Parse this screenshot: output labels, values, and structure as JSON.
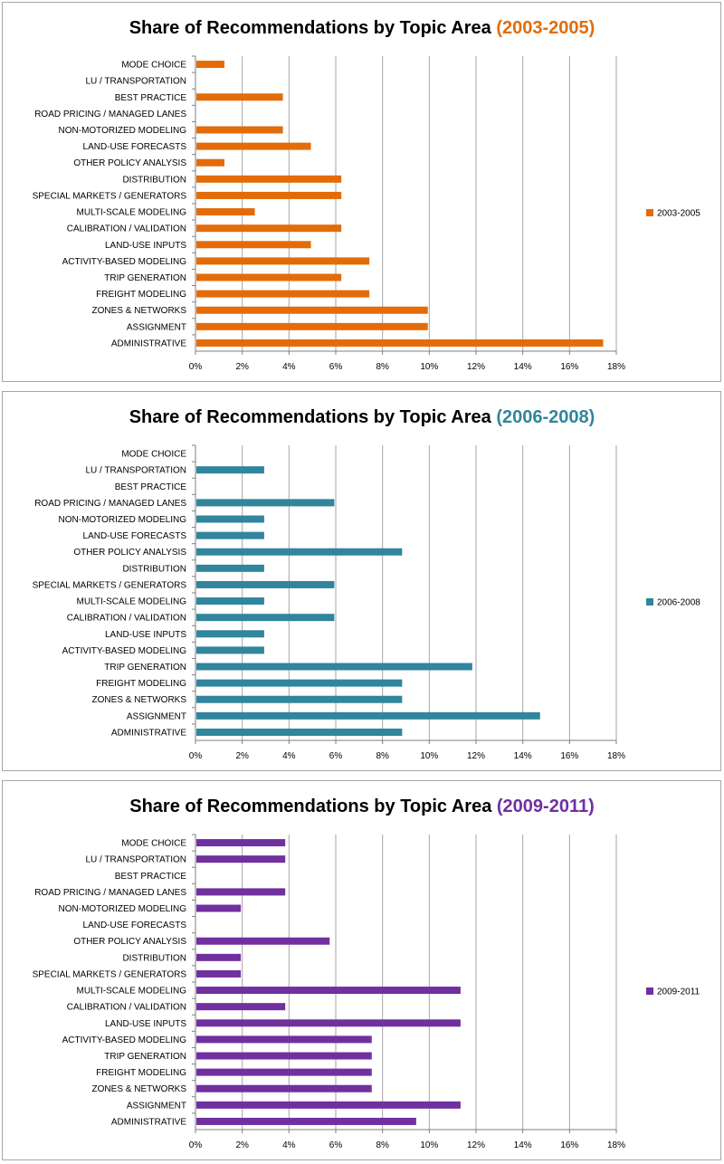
{
  "chart_data": [
    {
      "type": "bar",
      "orientation": "horizontal",
      "title": "Share of Recommendations by Topic Area",
      "title_period": "(2003-2005)",
      "period_color": "#E36C09",
      "bar_color": "#E36C09",
      "legend": "2003-2005",
      "xlim": [
        0,
        18
      ],
      "xticks": [
        "0%",
        "2%",
        "4%",
        "6%",
        "8%",
        "10%",
        "12%",
        "14%",
        "16%",
        "18%"
      ],
      "categories": [
        "MODE CHOICE",
        "LU / TRANSPORTATION",
        "BEST PRACTICE",
        "ROAD PRICING  / MANAGED  LANES",
        "NON-MOTORIZED  MODELING",
        "LAND-USE FORECASTS",
        "OTHER POLICY ANALYSIS",
        "DISTRIBUTION",
        "SPECIAL MARKETS  / GENERATORS",
        "MULTI-SCALE MODELING",
        "CALIBRATION / VALIDATION",
        "LAND-USE INPUTS",
        "ACTIVITY-BASED  MODELING",
        "TRIP GENERATION",
        "FREIGHT MODELING",
        "ZONES & NETWORKS",
        "ASSIGNMENT",
        "ADMINISTRATIVE"
      ],
      "values": [
        1.2,
        0,
        3.7,
        0,
        3.7,
        4.9,
        1.2,
        6.2,
        6.2,
        2.5,
        6.2,
        4.9,
        7.4,
        6.2,
        7.4,
        9.9,
        9.9,
        17.4
      ]
    },
    {
      "type": "bar",
      "orientation": "horizontal",
      "title": "Share of Recommendations by Topic Area",
      "title_period": "(2006-2008)",
      "period_color": "#31859C",
      "bar_color": "#31859C",
      "legend": "2006-2008",
      "xlim": [
        0,
        18
      ],
      "xticks": [
        "0%",
        "2%",
        "4%",
        "6%",
        "8%",
        "10%",
        "12%",
        "14%",
        "16%",
        "18%"
      ],
      "categories": [
        "MODE CHOICE",
        "LU / TRANSPORTATION",
        "BEST PRACTICE",
        "ROAD PRICING  / MANAGED  LANES",
        "NON-MOTORIZED  MODELING",
        "LAND-USE FORECASTS",
        "OTHER POLICY ANALYSIS",
        "DISTRIBUTION",
        "SPECIAL MARKETS  / GENERATORS",
        "MULTI-SCALE MODELING",
        "CALIBRATION / VALIDATION",
        "LAND-USE INPUTS",
        "ACTIVITY-BASED  MODELING",
        "TRIP GENERATION",
        "FREIGHT MODELING",
        "ZONES & NETWORKS",
        "ASSIGNMENT",
        "ADMINISTRATIVE"
      ],
      "values": [
        0,
        2.9,
        0,
        5.9,
        2.9,
        2.9,
        8.8,
        2.9,
        5.9,
        2.9,
        5.9,
        2.9,
        2.9,
        11.8,
        8.8,
        8.8,
        14.7,
        8.8
      ]
    },
    {
      "type": "bar",
      "orientation": "horizontal",
      "title": "Share of Recommendations by Topic Area",
      "title_period": "(2009-2011)",
      "period_color": "#7030A0",
      "bar_color": "#7030A0",
      "legend": "2009-2011",
      "xlim": [
        0,
        18
      ],
      "xticks": [
        "0%",
        "2%",
        "4%",
        "6%",
        "8%",
        "10%",
        "12%",
        "14%",
        "16%",
        "18%"
      ],
      "categories": [
        "MODE CHOICE",
        "LU / TRANSPORTATION",
        "BEST PRACTICE",
        "ROAD PRICING  / MANAGED  LANES",
        "NON-MOTORIZED  MODELING",
        "LAND-USE FORECASTS",
        "OTHER POLICY ANALYSIS",
        "DISTRIBUTION",
        "SPECIAL MARKETS  / GENERATORS",
        "MULTI-SCALE MODELING",
        "CALIBRATION / VALIDATION",
        "LAND-USE INPUTS",
        "ACTIVITY-BASED  MODELING",
        "TRIP GENERATION",
        "FREIGHT MODELING",
        "ZONES & NETWORKS",
        "ASSIGNMENT",
        "ADMINISTRATIVE"
      ],
      "values": [
        3.8,
        3.8,
        0,
        3.8,
        1.9,
        0,
        5.7,
        1.9,
        1.9,
        11.3,
        3.8,
        11.3,
        7.5,
        7.5,
        7.5,
        7.5,
        11.3,
        9.4
      ]
    }
  ]
}
